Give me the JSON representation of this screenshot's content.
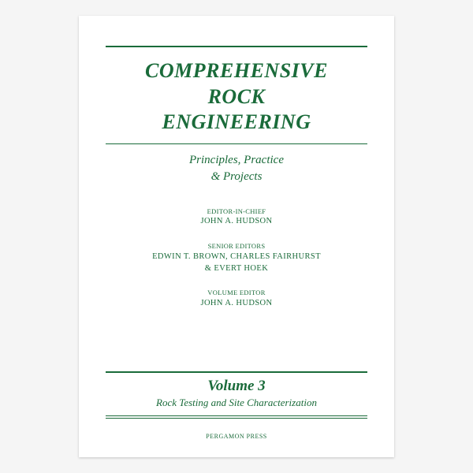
{
  "cover": {
    "title_line1": "COMPREHENSIVE",
    "title_line2": "ROCK",
    "title_line3": "ENGINEERING",
    "subtitle_line1": "Principles, Practice",
    "subtitle_line2": "& Projects",
    "editor_chief_label": "EDITOR-IN-CHIEF",
    "editor_chief_name": "JOHN A. HUDSON",
    "senior_label": "SENIOR EDITORS",
    "senior_line1": "EDWIN T. BROWN, CHARLES FAIRHURST",
    "senior_line2": "& EVERT HOEK",
    "vol_editor_label": "VOLUME EDITOR",
    "vol_editor_name": "JOHN A. HUDSON",
    "volume": "Volume 3",
    "volume_sub": "Rock Testing and Site Characterization",
    "publisher": "PERGAMON PRESS",
    "accent_color": "#1a6b3a",
    "background_color": "#ffffff"
  }
}
